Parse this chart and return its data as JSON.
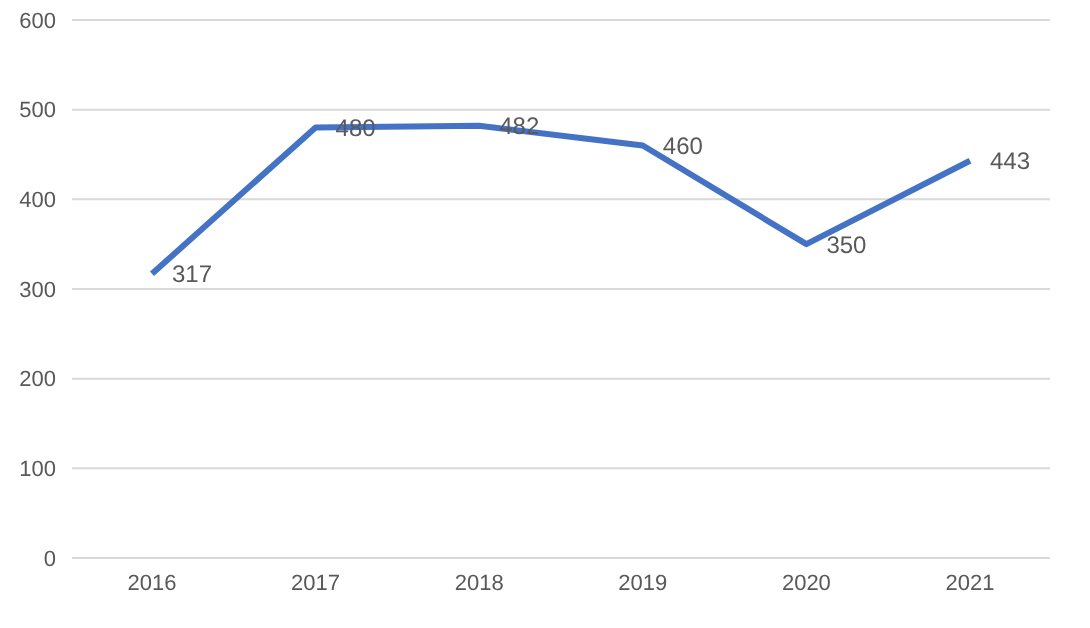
{
  "chart_data": {
    "type": "line",
    "categories": [
      "2016",
      "2017",
      "2018",
      "2019",
      "2020",
      "2021"
    ],
    "series": [
      {
        "color": "#4472c4",
        "values": [
          317,
          480,
          482,
          460,
          350,
          443
        ]
      }
    ],
    "ylim": [
      0,
      600
    ],
    "yticks": [
      0,
      100,
      200,
      300,
      400,
      500,
      600
    ],
    "grid": "y",
    "data_labels": true,
    "marker": "none",
    "line_style": "solid"
  }
}
